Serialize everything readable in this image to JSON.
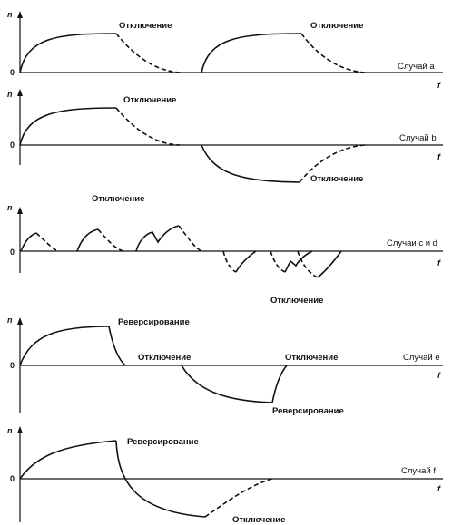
{
  "axes": {
    "y_label": "n",
    "x_label": "f",
    "zero_label": "0"
  },
  "panels": [
    {
      "case_label": "Случай a",
      "labels": [
        "Отключение",
        "Отключение"
      ]
    },
    {
      "case_label": "Случай b",
      "labels": [
        "Отключение",
        "Отключение"
      ]
    },
    {
      "case_label": "Случаи c и d",
      "labels": [
        "Отключение",
        "Отключение"
      ]
    },
    {
      "case_label": "Случай e",
      "labels": [
        "Реверсирование",
        "Отключение",
        "Отключение",
        "Реверсирование"
      ]
    },
    {
      "case_label": "Случай f",
      "labels": [
        "Реверсирование",
        "Отключение"
      ]
    }
  ]
}
